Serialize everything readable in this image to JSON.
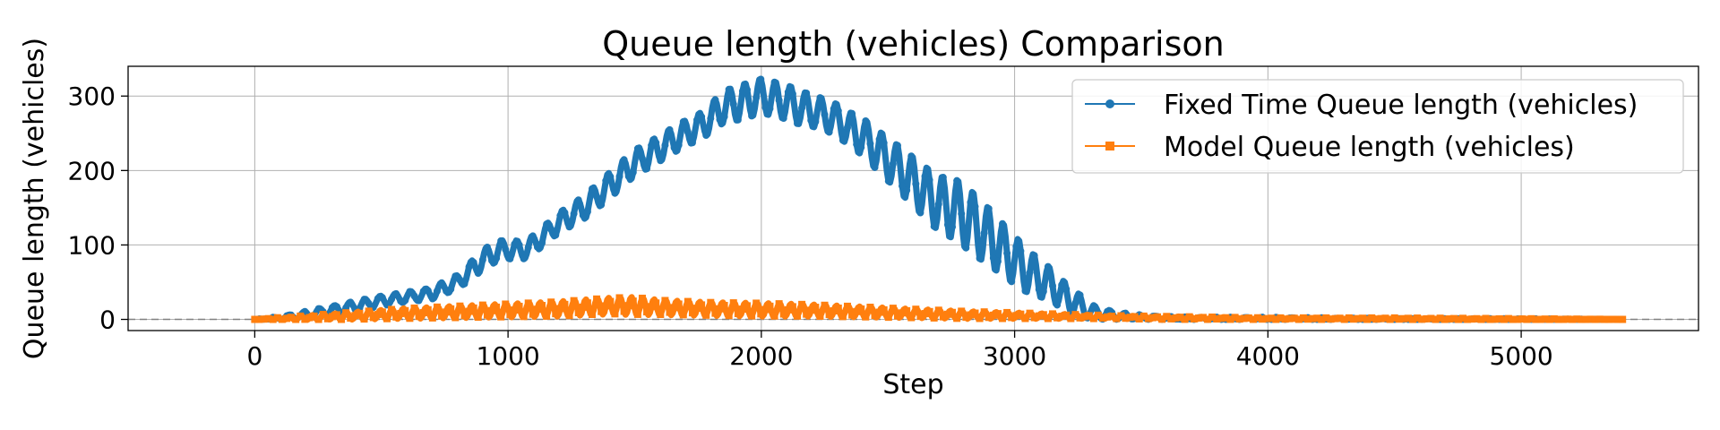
{
  "chart_data": {
    "type": "line",
    "title": "Queue length (vehicles) Comparison",
    "xlabel": "Step",
    "ylabel": "Queue length (vehicles)",
    "xlim": [
      -500,
      5700
    ],
    "ylim": [
      -15,
      340
    ],
    "xticks": [
      0,
      1000,
      2000,
      3000,
      4000,
      5000
    ],
    "yticks": [
      0,
      100,
      200,
      300
    ],
    "grid": true,
    "legend_position": "top-right",
    "reference_line": {
      "y": 0,
      "style": "dashed",
      "color": "#808080"
    },
    "series": [
      {
        "name": "Fixed Time Queue length (vehicles)",
        "color": "#1f77b4",
        "marker": "circle",
        "x": [
          0,
          100,
          200,
          300,
          400,
          500,
          600,
          700,
          800,
          850,
          900,
          950,
          1000,
          1050,
          1100,
          1150,
          1200,
          1250,
          1300,
          1350,
          1400,
          1450,
          1500,
          1550,
          1600,
          1650,
          1700,
          1750,
          1800,
          1850,
          1900,
          1950,
          2000,
          2050,
          2100,
          2150,
          2200,
          2250,
          2300,
          2350,
          2400,
          2450,
          2500,
          2550,
          2600,
          2650,
          2700,
          2750,
          2800,
          2850,
          2900,
          2950,
          3000,
          3050,
          3100,
          3150,
          3200,
          3250,
          3300,
          3400,
          3500,
          3600,
          3700,
          4000,
          4500,
          5000,
          5400
        ],
        "y": [
          0,
          2,
          6,
          12,
          18,
          25,
          30,
          35,
          50,
          65,
          80,
          90,
          95,
          92,
          100,
          115,
          130,
          140,
          150,
          165,
          180,
          195,
          210,
          220,
          230,
          240,
          250,
          258,
          270,
          285,
          290,
          295,
          300,
          296,
          292,
          285,
          280,
          275,
          268,
          255,
          245,
          230,
          215,
          200,
          185,
          170,
          155,
          150,
          140,
          125,
          110,
          95,
          80,
          65,
          55,
          45,
          30,
          20,
          10,
          5,
          3,
          2,
          1,
          1,
          0,
          0,
          0
        ],
        "amplitude": [
          0,
          2,
          5,
          6,
          7,
          7,
          7,
          8,
          10,
          12,
          14,
          14,
          14,
          13,
          13,
          13,
          14,
          15,
          16,
          17,
          18,
          18,
          18,
          18,
          18,
          18,
          18,
          18,
          20,
          22,
          24,
          24,
          24,
          24,
          24,
          24,
          22,
          22,
          22,
          24,
          26,
          28,
          30,
          32,
          34,
          36,
          38,
          42,
          44,
          42,
          40,
          36,
          34,
          30,
          26,
          22,
          20,
          16,
          10,
          5,
          3,
          2,
          2,
          2,
          1,
          1,
          0
        ]
      },
      {
        "name": "Model Queue length (vehicles)",
        "color": "#ff7f0e",
        "marker": "square",
        "x": [
          0,
          200,
          400,
          600,
          800,
          1000,
          1200,
          1400,
          1500,
          1600,
          1800,
          2000,
          2200,
          2400,
          2600,
          2800,
          3000,
          3200,
          3400,
          3600,
          4000,
          4500,
          5000,
          5400
        ],
        "y": [
          0,
          2,
          5,
          8,
          10,
          12,
          14,
          18,
          18,
          16,
          14,
          13,
          12,
          10,
          8,
          6,
          5,
          4,
          3,
          2,
          1,
          1,
          0,
          0
        ],
        "amplitude": [
          0,
          3,
          5,
          7,
          8,
          9,
          10,
          11,
          12,
          10,
          9,
          9,
          8,
          7,
          6,
          5,
          4,
          3,
          2,
          2,
          1,
          1,
          1,
          0
        ]
      }
    ]
  }
}
